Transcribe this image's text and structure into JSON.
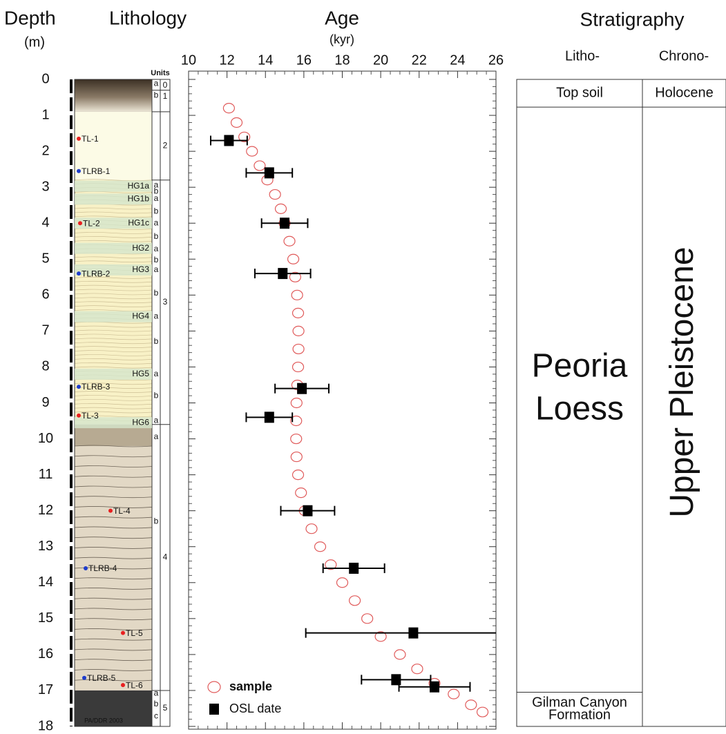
{
  "chart_data": {
    "type": "scatter",
    "title": "Age",
    "x_unit": "(kyr)",
    "y_label": "Depth",
    "y_unit": "(m)",
    "xlim": [
      10,
      26
    ],
    "xticks": [
      10,
      12,
      14,
      16,
      18,
      20,
      22,
      24,
      26
    ],
    "ylim": [
      0,
      18
    ],
    "y_inverted": true,
    "yticks": [
      0,
      1,
      2,
      3,
      4,
      5,
      6,
      7,
      8,
      9,
      10,
      11,
      12,
      13,
      14,
      15,
      16,
      17,
      18
    ],
    "series": [
      {
        "name": "sample",
        "color": "#e05a5a",
        "marker": "open-circle",
        "x": [
          12.1,
          12.5,
          12.9,
          13.3,
          13.7,
          14.1,
          14.5,
          14.8,
          15.0,
          15.25,
          15.45,
          15.55,
          15.65,
          15.7,
          15.72,
          15.72,
          15.7,
          15.66,
          15.62,
          15.6,
          15.6,
          15.62,
          15.7,
          15.85,
          16.05,
          16.4,
          16.85,
          17.4,
          18.0,
          18.65,
          19.3,
          20.0,
          21.0,
          21.9,
          22.8,
          23.8,
          24.7,
          25.3
        ],
        "y": [
          0.8,
          1.2,
          1.6,
          2.0,
          2.4,
          2.8,
          3.2,
          3.6,
          4.0,
          4.5,
          5.0,
          5.5,
          6.0,
          6.5,
          7.0,
          7.5,
          8.0,
          8.5,
          9.0,
          9.5,
          10.0,
          10.5,
          11.0,
          11.5,
          12.0,
          12.5,
          13.0,
          13.5,
          14.0,
          14.5,
          15.0,
          15.5,
          16.0,
          16.4,
          16.8,
          17.1,
          17.4,
          17.6
        ]
      },
      {
        "name": "OSL date",
        "color": "#000000",
        "marker": "filled-square",
        "x": [
          12.1,
          14.2,
          15.0,
          14.9,
          15.9,
          14.2,
          16.2,
          18.6,
          21.7,
          20.8,
          22.8
        ],
        "y": [
          1.7,
          2.6,
          4.0,
          5.4,
          8.6,
          9.4,
          12.0,
          13.6,
          15.4,
          16.7,
          16.9
        ],
        "x_error": [
          0.95,
          1.2,
          1.2,
          1.45,
          1.4,
          1.2,
          1.4,
          1.6,
          5.6,
          1.8,
          1.85
        ]
      }
    ]
  },
  "lithology": {
    "title": "Lithology",
    "units_header": "Units",
    "credit": "PA/DDR 2003",
    "layers": [
      {
        "top": 0,
        "bottom": 0.9,
        "color": "#5a4c3c"
      },
      {
        "top": 0.9,
        "bottom": 2.8,
        "color": "#fcfbe6"
      },
      {
        "top": 2.8,
        "bottom": 9.6,
        "color": "#f8f1c6"
      },
      {
        "top": 9.6,
        "bottom": 10.2,
        "color": "#b7aa92"
      },
      {
        "top": 10.2,
        "bottom": 17.0,
        "color": "#e2d8c5"
      },
      {
        "top": 17.0,
        "bottom": 18,
        "color": "#3a3a3a"
      }
    ],
    "units": [
      {
        "label": "0",
        "top": 0,
        "bottom": 0.3
      },
      {
        "label": "1",
        "top": 0.3,
        "bottom": 0.9
      },
      {
        "label": "2",
        "top": 0.9,
        "bottom": 2.8
      },
      {
        "label": "3",
        "top": 2.8,
        "bottom": 9.6
      },
      {
        "label": "4",
        "top": 9.6,
        "bottom": 17.0
      },
      {
        "label": "5",
        "top": 17.0,
        "bottom": 18
      }
    ],
    "subunits": [
      {
        "label": "a",
        "depth": 0.12
      },
      {
        "label": "b",
        "depth": 0.45
      },
      {
        "label": "a",
        "depth": 2.95
      },
      {
        "label": "b",
        "depth": 3.12
      },
      {
        "label": "a",
        "depth": 3.32
      },
      {
        "label": "b",
        "depth": 3.68
      },
      {
        "label": "a",
        "depth": 4.0
      },
      {
        "label": "b",
        "depth": 4.38
      },
      {
        "label": "a",
        "depth": 4.72
      },
      {
        "label": "b",
        "depth": 5.03
      },
      {
        "label": "a",
        "depth": 5.3
      },
      {
        "label": "b",
        "depth": 5.95
      },
      {
        "label": "a",
        "depth": 6.6
      },
      {
        "label": "b",
        "depth": 7.3
      },
      {
        "label": "a",
        "depth": 8.2
      },
      {
        "label": "b",
        "depth": 8.8
      },
      {
        "label": "a",
        "depth": 9.5
      },
      {
        "label": "a",
        "depth": 9.95
      },
      {
        "label": "b",
        "depth": 12.3
      },
      {
        "label": "a",
        "depth": 17.08
      },
      {
        "label": "b",
        "depth": 17.38
      },
      {
        "label": "c",
        "depth": 17.72
      }
    ],
    "horizons": [
      {
        "label": "HG1a",
        "depth": 2.97
      },
      {
        "label": "HG1b",
        "depth": 3.33
      },
      {
        "label": "HG1c",
        "depth": 4.0
      },
      {
        "label": "HG2",
        "depth": 4.7
      },
      {
        "label": "HG3",
        "depth": 5.3
      },
      {
        "label": "HG4",
        "depth": 6.6
      },
      {
        "label": "HG5",
        "depth": 8.2
      },
      {
        "label": "HG6",
        "depth": 9.55
      }
    ],
    "samples": [
      {
        "label": "TL-1",
        "depth": 1.65,
        "color": "#e82020"
      },
      {
        "label": "TLRB-1",
        "depth": 2.55,
        "color": "#1e3ccc"
      },
      {
        "label": "TL-2",
        "depth": 4.0,
        "color": "#e82020"
      },
      {
        "label": "TLRB-2",
        "depth": 5.4,
        "color": "#1e3ccc"
      },
      {
        "label": "TLRB-3",
        "depth": 8.55,
        "color": "#1e3ccc"
      },
      {
        "label": "TL-3",
        "depth": 9.35,
        "color": "#e82020"
      },
      {
        "label": "TL-4",
        "depth": 12.0,
        "color": "#e82020"
      },
      {
        "label": "TLRB-4",
        "depth": 13.6,
        "color": "#1e3ccc"
      },
      {
        "label": "TL-5",
        "depth": 15.4,
        "color": "#e82020"
      },
      {
        "label": "TLRB-5",
        "depth": 16.65,
        "color": "#1e3ccc"
      },
      {
        "label": "TL-6",
        "depth": 16.85,
        "color": "#e82020"
      }
    ]
  },
  "stratigraphy": {
    "title": "Stratigraphy",
    "columns": [
      "Litho-",
      "Chrono-"
    ],
    "litho": [
      {
        "lines": [
          "Top soil"
        ],
        "top": 0,
        "bottom": 0.77
      },
      {
        "lines": [
          "Peoria",
          "Loess"
        ],
        "top": 0.77,
        "bottom": 17.05
      },
      {
        "lines": [
          "Gilman Canyon",
          "Formation"
        ],
        "top": 17.05,
        "bottom": 18
      }
    ],
    "chrono": [
      {
        "lines": [
          "Holocene"
        ],
        "top": 0,
        "bottom": 0.77
      },
      {
        "lines": [
          "Upper Pleistocene"
        ],
        "top": 0.77,
        "bottom": 18
      }
    ]
  }
}
